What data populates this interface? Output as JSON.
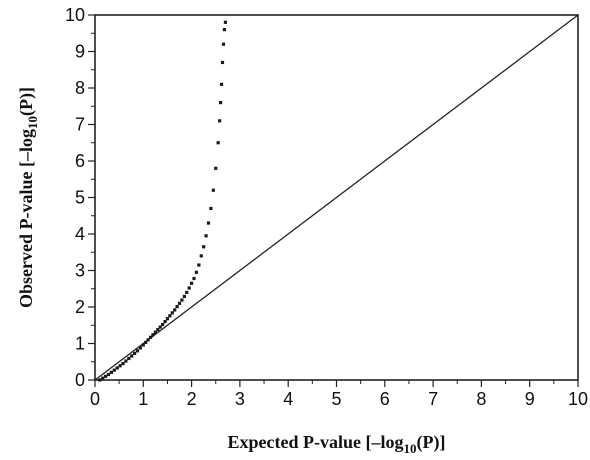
{
  "chart_data": {
    "type": "scatter",
    "title": "",
    "xlabel": {
      "main": "Expected P-value [–log",
      "sub": "10",
      "tail": "(P)]"
    },
    "ylabel": {
      "main": "Observed  P-value [–log",
      "sub": "10",
      "tail": "(P)]"
    },
    "xlim": [
      0,
      10
    ],
    "ylim": [
      0,
      10
    ],
    "x_ticks": [
      "0",
      "1",
      "2",
      "3",
      "4",
      "5",
      "6",
      "7",
      "8",
      "9",
      "10"
    ],
    "y_ticks": [
      "0",
      "1",
      "2",
      "3",
      "4",
      "5",
      "6",
      "7",
      "8",
      "9",
      "10"
    ],
    "grid": false,
    "reference_line": {
      "x": [
        0,
        10
      ],
      "y": [
        0,
        10
      ]
    },
    "marker_color": "#1a1a1a",
    "axis_color": "#222222",
    "series": [
      {
        "points": [
          [
            0.1,
            0.0
          ],
          [
            0.16,
            0.05
          ],
          [
            0.22,
            0.1
          ],
          [
            0.28,
            0.15
          ],
          [
            0.34,
            0.21
          ],
          [
            0.4,
            0.27
          ],
          [
            0.46,
            0.33
          ],
          [
            0.52,
            0.39
          ],
          [
            0.58,
            0.45
          ],
          [
            0.64,
            0.52
          ],
          [
            0.7,
            0.59
          ],
          [
            0.76,
            0.66
          ],
          [
            0.82,
            0.73
          ],
          [
            0.88,
            0.8
          ],
          [
            0.94,
            0.88
          ],
          [
            1.0,
            0.96
          ],
          [
            1.05,
            1.03
          ],
          [
            1.1,
            1.1
          ],
          [
            1.15,
            1.17
          ],
          [
            1.2,
            1.24
          ],
          [
            1.25,
            1.31
          ],
          [
            1.3,
            1.38
          ],
          [
            1.35,
            1.45
          ],
          [
            1.4,
            1.52
          ],
          [
            1.45,
            1.6
          ],
          [
            1.5,
            1.68
          ],
          [
            1.55,
            1.76
          ],
          [
            1.6,
            1.84
          ],
          [
            1.65,
            1.92
          ],
          [
            1.7,
            2.01
          ],
          [
            1.75,
            2.1
          ],
          [
            1.8,
            2.19
          ],
          [
            1.85,
            2.29
          ],
          [
            1.9,
            2.4
          ],
          [
            1.95,
            2.52
          ],
          [
            2.0,
            2.65
          ],
          [
            2.05,
            2.78
          ],
          [
            2.1,
            2.95
          ],
          [
            2.15,
            3.15
          ],
          [
            2.2,
            3.4
          ],
          [
            2.25,
            3.65
          ],
          [
            2.3,
            3.95
          ],
          [
            2.35,
            4.3
          ],
          [
            2.4,
            4.7
          ],
          [
            2.45,
            5.2
          ],
          [
            2.5,
            5.8
          ],
          [
            2.55,
            6.5
          ],
          [
            2.58,
            7.1
          ],
          [
            2.6,
            7.6
          ],
          [
            2.62,
            8.1
          ],
          [
            2.64,
            8.7
          ],
          [
            2.66,
            9.2
          ],
          [
            2.68,
            9.6
          ],
          [
            2.7,
            9.8
          ]
        ]
      }
    ]
  }
}
